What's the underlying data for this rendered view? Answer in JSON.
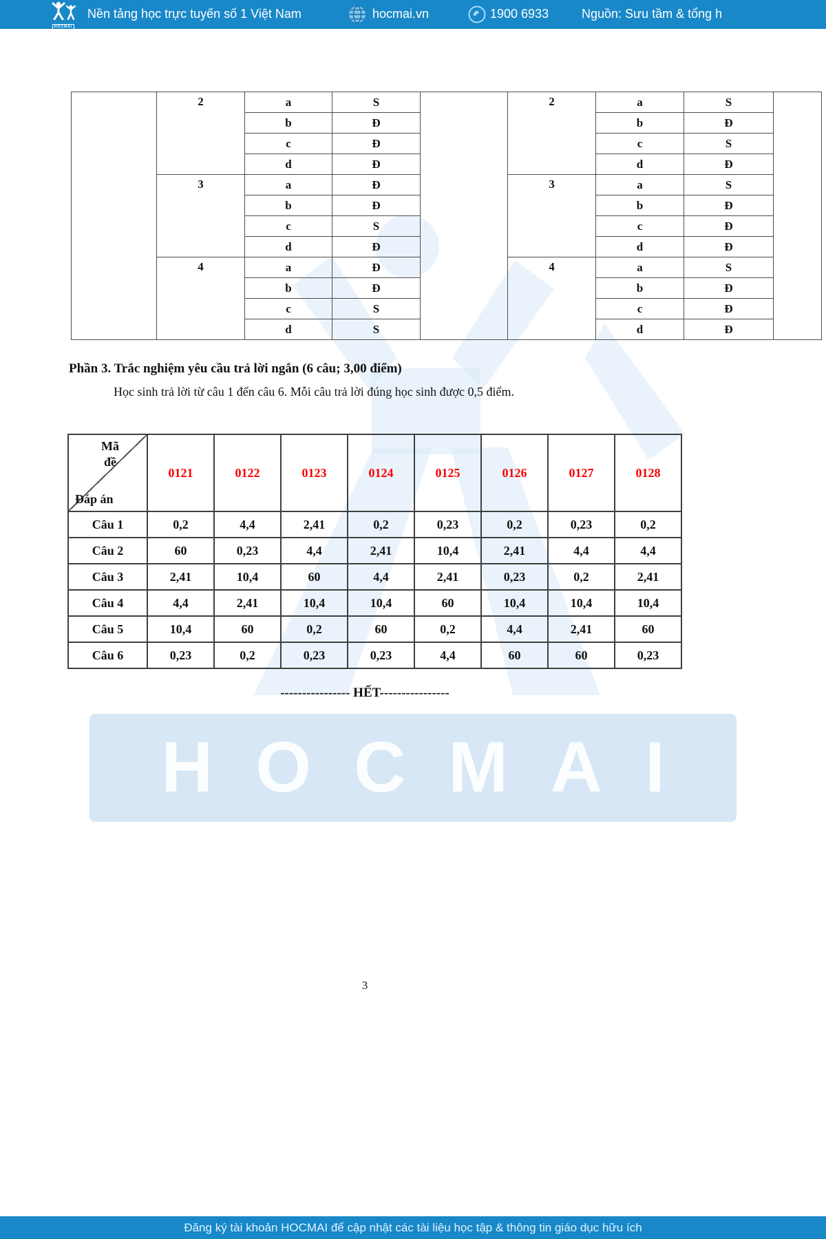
{
  "header": {
    "logo_text": "HOCMAI",
    "tagline": "Nền tảng học trực tuyến số 1 Việt Nam",
    "website": "hocmai.vn",
    "hotline": "1900 6933",
    "source": "Nguồn: Sưu tầm & tổng h"
  },
  "colors": {
    "brand_bar": "#1988c8",
    "exam_code_red": "#fb0000",
    "watermark_band": "#d7e7f5",
    "table_border": "#444444"
  },
  "answer_table": {
    "left": {
      "questions": [
        {
          "num": "2",
          "rows": [
            [
              "a",
              "S"
            ],
            [
              "b",
              "Đ"
            ],
            [
              "c",
              "Đ"
            ],
            [
              "d",
              "Đ"
            ]
          ]
        },
        {
          "num": "3",
          "rows": [
            [
              "a",
              "Đ"
            ],
            [
              "b",
              "Đ"
            ],
            [
              "c",
              "S"
            ],
            [
              "d",
              "Đ"
            ]
          ]
        },
        {
          "num": "4",
          "rows": [
            [
              "a",
              "Đ"
            ],
            [
              "b",
              "Đ"
            ],
            [
              "c",
              "S"
            ],
            [
              "d",
              "S"
            ]
          ]
        }
      ]
    },
    "right": {
      "questions": [
        {
          "num": "2",
          "rows": [
            [
              "a",
              "S"
            ],
            [
              "b",
              "Đ"
            ],
            [
              "c",
              "S"
            ],
            [
              "d",
              "Đ"
            ]
          ]
        },
        {
          "num": "3",
          "rows": [
            [
              "a",
              "S"
            ],
            [
              "b",
              "Đ"
            ],
            [
              "c",
              "Đ"
            ],
            [
              "d",
              "Đ"
            ]
          ]
        },
        {
          "num": "4",
          "rows": [
            [
              "a",
              "S"
            ],
            [
              "b",
              "Đ"
            ],
            [
              "c",
              "Đ"
            ],
            [
              "d",
              "Đ"
            ]
          ]
        }
      ]
    }
  },
  "section": {
    "heading": "Phần 3. Trắc nghiệm yêu cầu trả lời ngắn (6 câu; 3,00 điểm)",
    "instruction": "Học sinh trả lời từ câu 1 đến câu 6. Mỗi câu trả lời đúng học sinh được 0,5 điểm."
  },
  "short_answer_table": {
    "corner": {
      "top_line1": "Mã",
      "top_line2": "đề",
      "bottom": "Đáp án"
    },
    "codes": [
      "0121",
      "0122",
      "0123",
      "0124",
      "0125",
      "0126",
      "0127",
      "0128"
    ],
    "rows": [
      {
        "label": "Câu 1",
        "values": [
          "0,2",
          "4,4",
          "2,41",
          "0,2",
          "0,23",
          "0,2",
          "0,23",
          "0,2"
        ]
      },
      {
        "label": "Câu 2",
        "values": [
          "60",
          "0,23",
          "4,4",
          "2,41",
          "10,4",
          "2,41",
          "4,4",
          "4,4"
        ]
      },
      {
        "label": "Câu 3",
        "values": [
          "2,41",
          "10,4",
          "60",
          "4,4",
          "2,41",
          "0,23",
          "0,2",
          "2,41"
        ]
      },
      {
        "label": "Câu 4",
        "values": [
          "4,4",
          "2,41",
          "10,4",
          "10,4",
          "60",
          "10,4",
          "10,4",
          "10,4"
        ]
      },
      {
        "label": "Câu 5",
        "values": [
          "10,4",
          "60",
          "0,2",
          "60",
          "0,2",
          "4,4",
          "2,41",
          "60"
        ]
      },
      {
        "label": "Câu 6",
        "values": [
          "0,23",
          "0,2",
          "0,23",
          "0,23",
          "4,4",
          "60",
          "60",
          "0,23"
        ]
      }
    ]
  },
  "end_marker": "---------------- HẾT----------------",
  "watermark_text": "HOCMAI",
  "page_number": "3",
  "footer": {
    "text": "Đăng ký tài khoản HOCMAI để cập nhật các tài liệu học tập & thông tin giáo dục hữu ích"
  }
}
